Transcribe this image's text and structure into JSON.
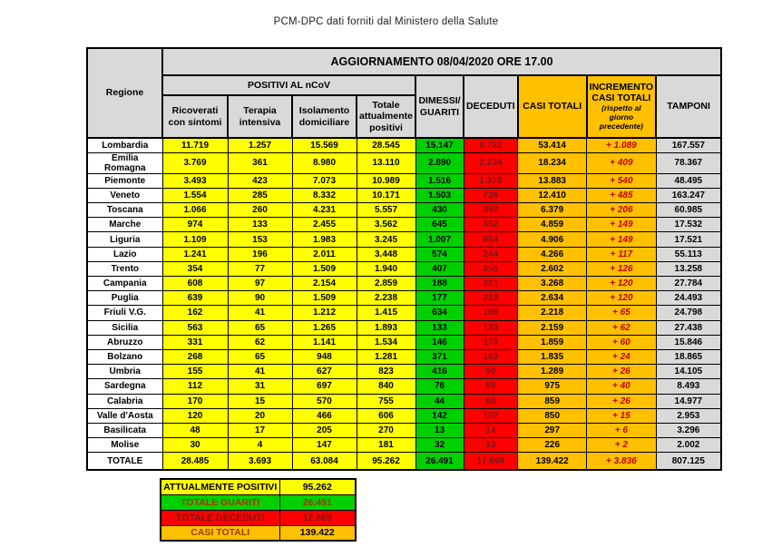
{
  "title": "PCM-DPC dati forniti dal Ministero della Salute",
  "table": {
    "header": {
      "regione": "Regione",
      "aggiornamento": "AGGIORNAMENTO 08/04/2020 ORE 17.00",
      "positivi_group": "POSITIVI AL nCoV",
      "col_ricoverati": "Ricoverati con sintomi",
      "col_terapia": "Terapia intensiva",
      "col_isolamento": "Isolamento domiciliare",
      "col_totale_positivi": "Totale attualmente positivi",
      "col_dimessi": "DIMESSI/\nGUARITI",
      "col_deceduti": "DECEDUTI",
      "col_casi_totali": "CASI TOTALI",
      "col_incremento": "INCREMENTO CASI  TOTALI",
      "col_incremento_note": "(rispetto al giorno precedente)",
      "col_tamponi": "TAMPONI"
    },
    "rows": [
      {
        "name": "Lombardia",
        "ricoverati": "11.719",
        "terapia": "1.257",
        "isolamento": "15.569",
        "totale_positivi": "28.545",
        "dimessi": "15.147",
        "deceduti": "9.722",
        "casi_totali": "53.414",
        "incremento": "+ 1.089",
        "tamponi": "167.557"
      },
      {
        "name": "Emilia Romagna",
        "ricoverati": "3.769",
        "terapia": "361",
        "isolamento": "8.980",
        "totale_positivi": "13.110",
        "dimessi": "2.890",
        "deceduti": "2.234",
        "casi_totali": "18.234",
        "incremento": "+ 409",
        "tamponi": "78.367"
      },
      {
        "name": "Piemonte",
        "ricoverati": "3.493",
        "terapia": "423",
        "isolamento": "7.073",
        "totale_positivi": "10.989",
        "dimessi": "1.516",
        "deceduti": "1.378",
        "casi_totali": "13.883",
        "incremento": "+ 540",
        "tamponi": "48.495"
      },
      {
        "name": "Veneto",
        "ricoverati": "1.554",
        "terapia": "285",
        "isolamento": "8.332",
        "totale_positivi": "10.171",
        "dimessi": "1.503",
        "deceduti": "736",
        "casi_totali": "12.410",
        "incremento": "+ 485",
        "tamponi": "163.247"
      },
      {
        "name": "Toscana",
        "ricoverati": "1.066",
        "terapia": "260",
        "isolamento": "4.231",
        "totale_positivi": "5.557",
        "dimessi": "430",
        "deceduti": "392",
        "casi_totali": "6.379",
        "incremento": "+ 206",
        "tamponi": "60.985"
      },
      {
        "name": "Marche",
        "ricoverati": "974",
        "terapia": "133",
        "isolamento": "2.455",
        "totale_positivi": "3.562",
        "dimessi": "645",
        "deceduti": "652",
        "casi_totali": "4.859",
        "incremento": "+ 149",
        "tamponi": "17.532"
      },
      {
        "name": "Liguria",
        "ricoverati": "1.109",
        "terapia": "153",
        "isolamento": "1.983",
        "totale_positivi": "3.245",
        "dimessi": "1.007",
        "deceduti": "654",
        "casi_totali": "4.906",
        "incremento": "+ 149",
        "tamponi": "17.521"
      },
      {
        "name": "Lazio",
        "ricoverati": "1.241",
        "terapia": "196",
        "isolamento": "2.011",
        "totale_positivi": "3.448",
        "dimessi": "574",
        "deceduti": "244",
        "casi_totali": "4.266",
        "incremento": "+ 117",
        "tamponi": "55.113"
      },
      {
        "name": "Trento",
        "ricoverati": "354",
        "terapia": "77",
        "isolamento": "1.509",
        "totale_positivi": "1.940",
        "dimessi": "407",
        "deceduti": "255",
        "casi_totali": "2.602",
        "incremento": "+ 126",
        "tamponi": "13.258"
      },
      {
        "name": "Campania",
        "ricoverati": "608",
        "terapia": "97",
        "isolamento": "2.154",
        "totale_positivi": "2.859",
        "dimessi": "188",
        "deceduti": "221",
        "casi_totali": "3.268",
        "incremento": "+ 120",
        "tamponi": "27.784"
      },
      {
        "name": "Puglia",
        "ricoverati": "639",
        "terapia": "90",
        "isolamento": "1.509",
        "totale_positivi": "2.238",
        "dimessi": "177",
        "deceduti": "219",
        "casi_totali": "2.634",
        "incremento": "+ 120",
        "tamponi": "24.493"
      },
      {
        "name": "Friuli V.G.",
        "ricoverati": "162",
        "terapia": "41",
        "isolamento": "1.212",
        "totale_positivi": "1.415",
        "dimessi": "634",
        "deceduti": "169",
        "casi_totali": "2.218",
        "incremento": "+ 65",
        "tamponi": "24.798"
      },
      {
        "name": "Sicilia",
        "ricoverati": "563",
        "terapia": "65",
        "isolamento": "1.265",
        "totale_positivi": "1.893",
        "dimessi": "133",
        "deceduti": "133",
        "casi_totali": "2.159",
        "incremento": "+ 62",
        "tamponi": "27.438"
      },
      {
        "name": "Abruzzo",
        "ricoverati": "331",
        "terapia": "62",
        "isolamento": "1.141",
        "totale_positivi": "1.534",
        "dimessi": "146",
        "deceduti": "179",
        "casi_totali": "1.859",
        "incremento": "+ 60",
        "tamponi": "15.846"
      },
      {
        "name": "Bolzano",
        "ricoverati": "268",
        "terapia": "65",
        "isolamento": "948",
        "totale_positivi": "1.281",
        "dimessi": "371",
        "deceduti": "183",
        "casi_totali": "1.835",
        "incremento": "+ 24",
        "tamponi": "18.865"
      },
      {
        "name": "Umbria",
        "ricoverati": "155",
        "terapia": "41",
        "isolamento": "627",
        "totale_positivi": "823",
        "dimessi": "416",
        "deceduti": "50",
        "casi_totali": "1.289",
        "incremento": "+ 26",
        "tamponi": "14.105"
      },
      {
        "name": "Sardegna",
        "ricoverati": "112",
        "terapia": "31",
        "isolamento": "697",
        "totale_positivi": "840",
        "dimessi": "76",
        "deceduti": "59",
        "casi_totali": "975",
        "incremento": "+ 40",
        "tamponi": "8.493"
      },
      {
        "name": "Calabria",
        "ricoverati": "170",
        "terapia": "15",
        "isolamento": "570",
        "totale_positivi": "755",
        "dimessi": "44",
        "deceduti": "60",
        "casi_totali": "859",
        "incremento": "+ 26",
        "tamponi": "14.977"
      },
      {
        "name": "Valle d'Aosta",
        "ricoverati": "120",
        "terapia": "20",
        "isolamento": "466",
        "totale_positivi": "606",
        "dimessi": "142",
        "deceduti": "102",
        "casi_totali": "850",
        "incremento": "+ 15",
        "tamponi": "2.953"
      },
      {
        "name": "Basilicata",
        "ricoverati": "48",
        "terapia": "17",
        "isolamento": "205",
        "totale_positivi": "270",
        "dimessi": "13",
        "deceduti": "14",
        "casi_totali": "297",
        "incremento": "+ 6",
        "tamponi": "3.296"
      },
      {
        "name": "Molise",
        "ricoverati": "30",
        "terapia": "4",
        "isolamento": "147",
        "totale_positivi": "181",
        "dimessi": "32",
        "deceduti": "13",
        "casi_totali": "226",
        "incremento": "+ 2",
        "tamponi": "2.002"
      }
    ],
    "totale": {
      "name": "TOTALE",
      "ricoverati": "28.485",
      "terapia": "3.693",
      "isolamento": "63.084",
      "totale_positivi": "95.262",
      "dimessi": "26.491",
      "deceduti": "17.669",
      "casi_totali": "139.422",
      "incremento": "+ 3.836",
      "tamponi": "807.125"
    }
  },
  "summary": {
    "rows": [
      {
        "label": "ATTUALMENTE POSITIVI",
        "value": "95.262",
        "color": "yellow"
      },
      {
        "label": "TOTALE GUARITI",
        "value": "26.491",
        "color": "green"
      },
      {
        "label": "TOTALE DECEDUTI",
        "value": "17.669",
        "color": "red"
      },
      {
        "label": "CASI TOTALI",
        "value": "139.422",
        "color": "orange"
      }
    ]
  },
  "colors": {
    "yellow": "#ffff00",
    "green": "#00d000",
    "red": "#ff0000",
    "orange": "#ffc000",
    "header_gray": "#d9d9d9",
    "dark_red_text": "#c00000",
    "deceduti_text": "#7c1414"
  }
}
